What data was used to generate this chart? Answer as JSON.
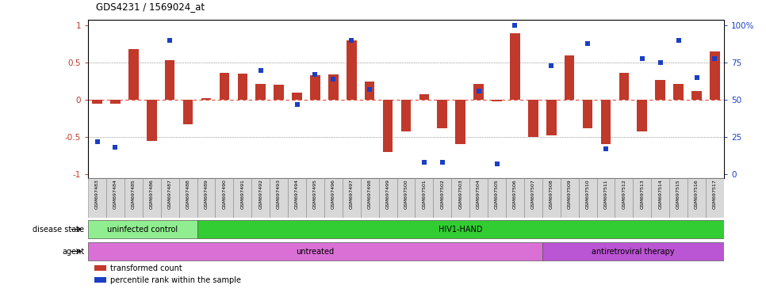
{
  "title": "GDS4231 / 1569024_at",
  "samples": [
    "GSM697483",
    "GSM697484",
    "GSM697485",
    "GSM697486",
    "GSM697487",
    "GSM697488",
    "GSM697489",
    "GSM697490",
    "GSM697491",
    "GSM697492",
    "GSM697493",
    "GSM697494",
    "GSM697495",
    "GSM697496",
    "GSM697497",
    "GSM697498",
    "GSM697499",
    "GSM697500",
    "GSM697501",
    "GSM697502",
    "GSM697503",
    "GSM697504",
    "GSM697505",
    "GSM697506",
    "GSM697507",
    "GSM697508",
    "GSM697509",
    "GSM697510",
    "GSM697511",
    "GSM697512",
    "GSM697513",
    "GSM697514",
    "GSM697515",
    "GSM697516",
    "GSM697517"
  ],
  "bar_values": [
    -0.05,
    -0.05,
    0.68,
    -0.55,
    0.54,
    -0.33,
    0.02,
    0.37,
    0.35,
    0.22,
    0.2,
    0.1,
    0.33,
    0.34,
    0.8,
    0.25,
    -0.7,
    -0.42,
    0.08,
    -0.38,
    -0.6,
    0.22,
    -0.02,
    0.9,
    -0.5,
    -0.48,
    0.6,
    -0.38,
    -0.6,
    0.36,
    -0.42,
    0.27,
    0.22,
    0.12,
    0.65
  ],
  "blue_pct": [
    22,
    18,
    null,
    null,
    90,
    null,
    null,
    null,
    null,
    70,
    null,
    47,
    67,
    64,
    90,
    57,
    null,
    null,
    8,
    8,
    null,
    56,
    7,
    100,
    null,
    73,
    null,
    88,
    17,
    null,
    78,
    75,
    90,
    65,
    78
  ],
  "bar_color": "#c0392b",
  "blue_color": "#1a3fc4",
  "zero_line_color": "#e74c3c",
  "dotted_line_color": "#555555",
  "disease_state_groups": [
    {
      "label": "uninfected control",
      "start": 0,
      "end": 5,
      "color": "#90EE90"
    },
    {
      "label": "HIV1-HAND",
      "start": 6,
      "end": 34,
      "color": "#32CD32"
    }
  ],
  "agent_groups": [
    {
      "label": "untreated",
      "start": 0,
      "end": 24,
      "color": "#DA70D6"
    },
    {
      "label": "antiretroviral therapy",
      "start": 25,
      "end": 34,
      "color": "#BA55D3"
    }
  ],
  "ylim": [
    -1.05,
    1.08
  ],
  "y_ticks_left": [
    -1,
    -0.5,
    0,
    0.5,
    1
  ],
  "y_ticks_right_pct": [
    0,
    25,
    50,
    75,
    100
  ],
  "right_tick_labels": [
    "0",
    "25",
    "50",
    "75",
    "100%"
  ],
  "legend_items": [
    {
      "label": "transformed count",
      "color": "#c0392b"
    },
    {
      "label": "percentile rank within the sample",
      "color": "#1a3fc4"
    }
  ]
}
